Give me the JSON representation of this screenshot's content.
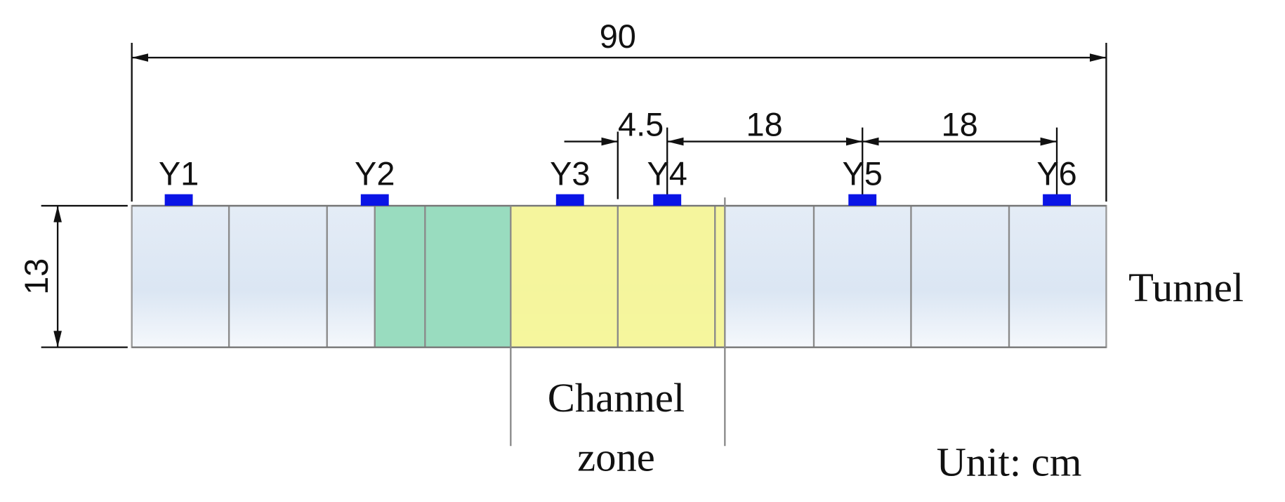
{
  "dimensions": {
    "total_length": "90",
    "height": "13",
    "spacing_a": "4.5",
    "spacing_b": "18",
    "spacing_c": "18"
  },
  "sensors": [
    "Y1",
    "Y2",
    "Y3",
    "Y4",
    "Y5",
    "Y6"
  ],
  "labels": {
    "tunnel": "Tunnel",
    "channel_zone": [
      "Channel",
      "zone"
    ],
    "unit": "Unit: cm"
  }
}
